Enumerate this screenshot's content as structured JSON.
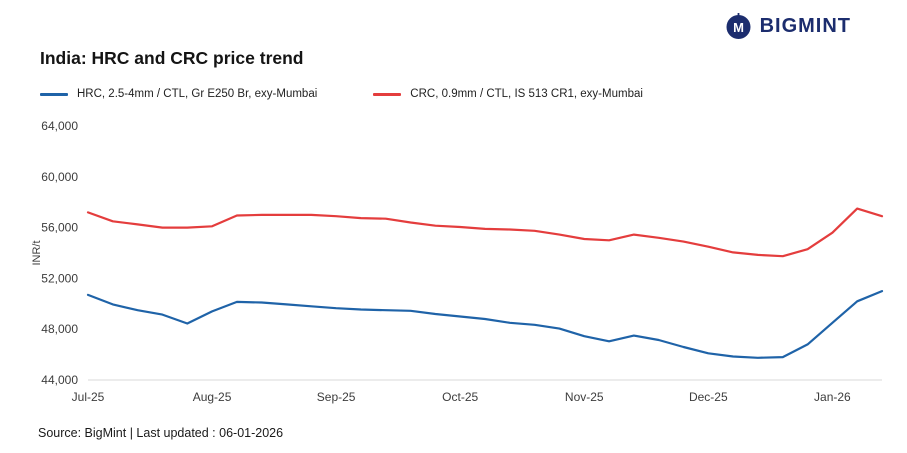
{
  "header": {
    "logo_text": "BIGMINT"
  },
  "chart": {
    "title": "India: HRC and CRC price trend"
  },
  "chart_data": {
    "type": "line",
    "title": "India: HRC and CRC price trend",
    "xlabel": "",
    "ylabel": "INR/t",
    "ylim": [
      44000,
      64000
    ],
    "grid": false,
    "legend_position": "top-left",
    "y_ticks": [
      44000,
      48000,
      52000,
      56000,
      60000,
      64000
    ],
    "y_tick_labels": [
      "44,000",
      "48,000",
      "52,000",
      "56,000",
      "60,000",
      "64,000"
    ],
    "x_tick_indices": [
      0,
      5,
      10,
      15,
      20,
      25,
      30
    ],
    "x_tick_labels": [
      "Jul-25",
      "Aug-25",
      "Sep-25",
      "Oct-25",
      "Nov-25",
      "Dec-25",
      "Jan-26"
    ],
    "series": [
      {
        "name": "HRC, 2.5-4mm / CTL, Gr E250 Br, exy-Mumbai",
        "color": "#1f63a8",
        "values": [
          50700,
          49950,
          49500,
          49150,
          48450,
          49400,
          50150,
          50100,
          49950,
          49800,
          49650,
          49550,
          49500,
          49450,
          49200,
          49000,
          48800,
          48500,
          48350,
          48050,
          47450,
          47050,
          47500,
          47150,
          46600,
          46100,
          45850,
          45750,
          45800,
          46800,
          48500,
          50200,
          51000
        ]
      },
      {
        "name": "CRC, 0.9mm / CTL, IS 513 CR1, exy-Mumbai",
        "color": "#e43d3d",
        "values": [
          57200,
          56500,
          56250,
          56000,
          56000,
          56100,
          56950,
          57000,
          57000,
          57000,
          56900,
          56750,
          56700,
          56400,
          56150,
          56050,
          55900,
          55850,
          55750,
          55450,
          55100,
          55000,
          55450,
          55200,
          54900,
          54500,
          54050,
          53850,
          53750,
          54300,
          55600,
          57500,
          56900
        ]
      }
    ]
  },
  "footer": {
    "text": "Source: BigMint | Last updated : 06-01-2026"
  }
}
